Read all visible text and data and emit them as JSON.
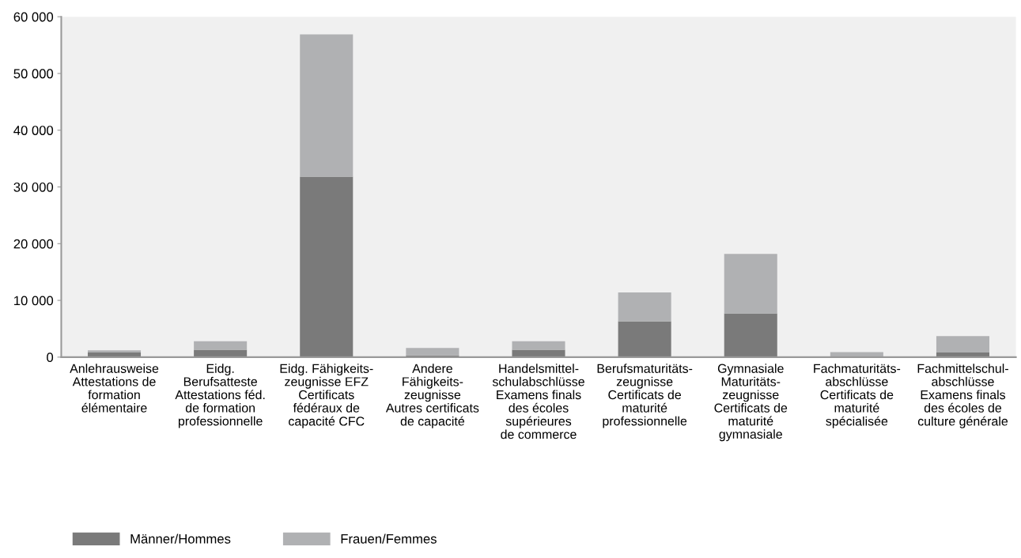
{
  "chart_data": {
    "type": "bar",
    "stacked": true,
    "categories": [
      "Anlehrausweise\nAttestations de\nformation\nélémentaire",
      "Eidg.\nBerufsatteste\nAttestations féd.\nde formation\nprofessionnelle",
      "Eidg. Fähigkeits-\nzeugnisse EFZ\nCertificats\nfédéraux de\ncapacité CFC",
      "Andere\nFähigkeits-\nzeugnisse\nAutres certificats\nde capacité",
      "Handelsmittel-\nschulabschlüsse\nExamens finals\ndes écoles\nsupérieures\nde commerce",
      "Berufsmaturitäts-\nzeugnisse\nCertificats de\nmaturité\nprofessionnelle",
      "Gymnasiale\nMaturitäts-\nzeugnisse\nCertificats de\nmaturité\ngymnasiale",
      "Fachmaturitäts-\nabschlüsse\nCertificats de\nmaturité\nspécialisée",
      "Fachmittelschul-\nabschlüsse\nExamens finals\ndes écoles de\nculture générale"
    ],
    "series": [
      {
        "name": "Männer/Hommes",
        "color": "#7a7a7a",
        "values": [
          800,
          1300,
          31800,
          300,
          1300,
          6300,
          7700,
          0,
          800
        ]
      },
      {
        "name": "Frauen/Femmes",
        "color": "#b0b1b3",
        "values": [
          400,
          1500,
          25100,
          1300,
          1500,
          5100,
          10500,
          900,
          2900
        ]
      }
    ],
    "ylim": [
      0,
      60000
    ],
    "yticks": [
      {
        "value": 0,
        "label": "0"
      },
      {
        "value": 10000,
        "label": "10 000"
      },
      {
        "value": 20000,
        "label": "20 000"
      },
      {
        "value": 30000,
        "label": "30 000"
      },
      {
        "value": 40000,
        "label": "40 000"
      },
      {
        "value": 50000,
        "label": "50 000"
      },
      {
        "value": 60000,
        "label": "60 000"
      }
    ],
    "grid": false,
    "legend": "bottom left"
  }
}
